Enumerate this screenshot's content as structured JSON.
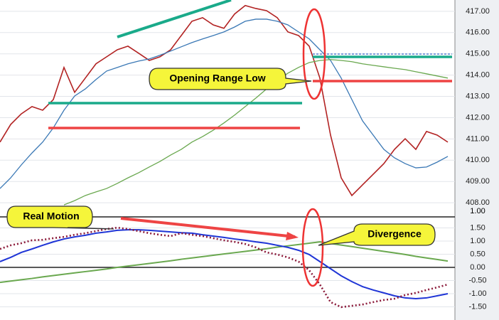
{
  "chart_data": [
    {
      "type": "line",
      "ylim": [
        407.67,
        417.53
      ],
      "yticks": [
        {
          "value": 408,
          "label": "408.00"
        },
        {
          "value": 409,
          "label": "409.00"
        },
        {
          "value": 410,
          "label": "410.00"
        },
        {
          "value": 411,
          "label": "411.00"
        },
        {
          "value": 412,
          "label": "412.00"
        },
        {
          "value": 413,
          "label": "413.00"
        },
        {
          "value": 414,
          "label": "414.00"
        },
        {
          "value": 415,
          "label": "415.00"
        },
        {
          "value": 416,
          "label": "416.00"
        },
        {
          "value": 417,
          "label": "417.00"
        }
      ],
      "grid": true,
      "annotations": [
        "Opening Range Low"
      ],
      "series": [
        {
          "color": "#b22222",
          "width": 1.6,
          "dash": "none",
          "values": [
            410.85,
            411.68,
            412.18,
            412.52,
            412.35,
            412.85,
            414.36,
            413.19,
            413.86,
            414.53,
            414.86,
            415.19,
            415.36,
            415.03,
            414.69,
            414.86,
            415.19,
            415.86,
            416.53,
            416.7,
            416.36,
            416.2,
            416.87,
            417.27,
            417.13,
            417.03,
            416.7,
            416.03,
            415.86,
            415.36,
            413.86,
            411.18,
            409.17,
            408.34,
            408.84,
            409.34,
            409.84,
            410.51,
            411.01,
            410.51,
            411.35,
            411.18,
            410.85
          ]
        },
        {
          "color": "#3a78b5",
          "width": 1.3,
          "dash": "none",
          "values": [
            408.67,
            409.17,
            409.78,
            410.34,
            410.85,
            411.52,
            412.35,
            413.02,
            413.35,
            413.79,
            414.19,
            414.36,
            414.53,
            414.66,
            414.76,
            414.93,
            415.13,
            415.33,
            415.53,
            415.7,
            415.86,
            416.03,
            416.26,
            416.53,
            416.63,
            416.63,
            416.53,
            416.36,
            416.03,
            415.7,
            415.19,
            414.69,
            413.86,
            412.85,
            411.85,
            411.18,
            410.51,
            410.11,
            409.84,
            409.64,
            409.68,
            409.91,
            410.18
          ]
        },
        {
          "color": "#6aa84f",
          "width": 1.3,
          "dash": "none",
          "values": [
            null,
            null,
            null,
            null,
            null,
            null,
            407.9,
            408.1,
            408.34,
            408.51,
            408.67,
            408.91,
            409.17,
            409.41,
            409.68,
            409.94,
            410.24,
            410.51,
            410.85,
            411.11,
            411.41,
            411.75,
            412.12,
            412.52,
            412.92,
            413.35,
            413.76,
            414.09,
            414.36,
            414.59,
            414.69,
            414.73,
            414.69,
            414.63,
            414.53,
            414.46,
            414.39,
            414.32,
            414.26,
            414.16,
            414.06,
            413.96,
            413.86
          ]
        }
      ]
    },
    {
      "type": "line",
      "ylim": [
        -2.0,
        1.92
      ],
      "panel_top_label": "1.00",
      "yticks": [
        {
          "value": 1.5,
          "label": "1.50"
        },
        {
          "value": 1,
          "label": "1.00"
        },
        {
          "value": 0.5,
          "label": "0.50"
        },
        {
          "value": 0,
          "label": "0.00"
        },
        {
          "value": -0.5,
          "label": "-0.50"
        },
        {
          "value": -1,
          "label": "-1.00"
        },
        {
          "value": -1.5,
          "label": "-1.50"
        }
      ],
      "grid": true,
      "annotations": [
        "Real Motion",
        "Divergence"
      ],
      "series": [
        {
          "color": "#6aa84f",
          "width": 2,
          "dash": "none",
          "values": [
            -0.57,
            -0.52,
            -0.47,
            -0.42,
            -0.36,
            -0.31,
            -0.26,
            -0.21,
            -0.16,
            -0.11,
            -0.06,
            0.0,
            0.05,
            0.1,
            0.15,
            0.2,
            0.25,
            0.31,
            0.36,
            0.41,
            0.46,
            0.51,
            0.56,
            0.61,
            0.66,
            0.71,
            0.77,
            0.82,
            0.87,
            0.92,
            0.97,
            0.91,
            0.85,
            0.79,
            0.73,
            0.67,
            0.61,
            0.55,
            0.49,
            0.42,
            0.36,
            0.3,
            0.24
          ]
        },
        {
          "color": "#1f35d6",
          "width": 2,
          "dash": "none",
          "values": [
            0.22,
            0.38,
            0.57,
            0.7,
            0.84,
            0.97,
            1.08,
            1.16,
            1.22,
            1.3,
            1.35,
            1.41,
            1.43,
            1.43,
            1.41,
            1.38,
            1.35,
            1.32,
            1.3,
            1.24,
            1.19,
            1.14,
            1.08,
            1.03,
            0.97,
            0.92,
            0.84,
            0.76,
            0.65,
            0.49,
            0.22,
            -0.05,
            -0.32,
            -0.54,
            -0.73,
            -0.86,
            -0.97,
            -1.08,
            -1.16,
            -1.19,
            -1.16,
            -1.08,
            -1.0
          ]
        },
        {
          "color": "#8b1a3a",
          "width": 2.6,
          "dash": "2 3",
          "values": [
            0.7,
            0.84,
            0.92,
            1.03,
            1.05,
            1.11,
            1.16,
            1.24,
            1.3,
            1.38,
            1.46,
            1.51,
            1.46,
            1.38,
            1.3,
            1.24,
            1.19,
            1.3,
            1.24,
            1.19,
            1.11,
            1.03,
            0.97,
            0.89,
            0.76,
            0.57,
            0.49,
            0.38,
            0.22,
            -0.11,
            -0.65,
            -1.32,
            -1.51,
            -1.46,
            -1.41,
            -1.32,
            -1.24,
            -1.19,
            -1.05,
            -0.97,
            -0.86,
            -0.76,
            -0.65
          ]
        }
      ]
    }
  ]
}
